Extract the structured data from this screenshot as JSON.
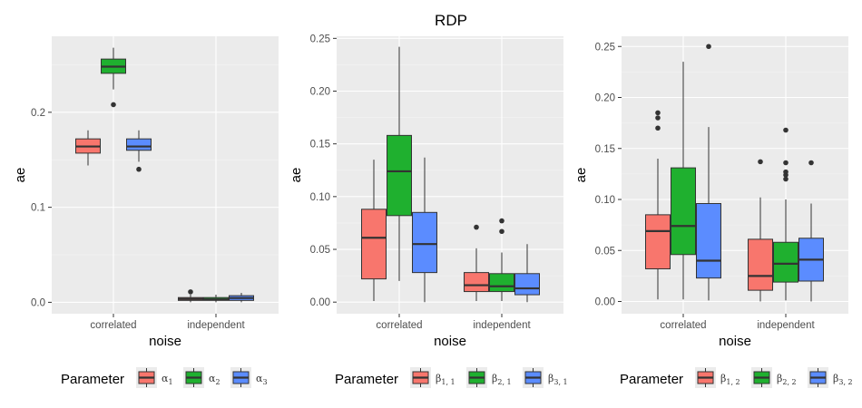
{
  "figure": {
    "title": "RDP"
  },
  "legend_title": "Parameter",
  "colors": {
    "red": "#F8766D",
    "green": "#1FB02F",
    "blue": "#5B8CFF"
  },
  "chart_data": [
    {
      "type": "boxplot",
      "xlabel": "noise",
      "ylabel": "ae",
      "categories": [
        "correlated",
        "independent"
      ],
      "ylim": [
        -0.012,
        0.28
      ],
      "yticks": [
        0.0,
        0.1,
        0.2
      ],
      "ytick_labels": [
        "0.0",
        "0.1",
        "0.2"
      ],
      "legend": [
        {
          "base": "α",
          "sub": "1",
          "color": "#F8766D"
        },
        {
          "base": "α",
          "sub": "2",
          "color": "#1FB02F"
        },
        {
          "base": "α",
          "sub": "3",
          "color": "#5B8CFF"
        }
      ],
      "boxes": [
        {
          "category": 0,
          "series": 0,
          "min": 0.144,
          "q1": 0.157,
          "median": 0.164,
          "q3": 0.172,
          "max": 0.181,
          "outliers": []
        },
        {
          "category": 0,
          "series": 1,
          "min": 0.224,
          "q1": 0.241,
          "median": 0.248,
          "q3": 0.256,
          "max": 0.268,
          "outliers": [
            0.208
          ]
        },
        {
          "category": 0,
          "series": 2,
          "min": 0.148,
          "q1": 0.16,
          "median": 0.164,
          "q3": 0.172,
          "max": 0.181,
          "outliers": [
            0.14
          ]
        },
        {
          "category": 1,
          "series": 0,
          "min": 0.0,
          "q1": 0.002,
          "median": 0.0035,
          "q3": 0.005,
          "max": 0.008,
          "outliers": [
            0.011
          ]
        },
        {
          "category": 1,
          "series": 1,
          "min": 0.0,
          "q1": 0.002,
          "median": 0.003,
          "q3": 0.005,
          "max": 0.008,
          "outliers": []
        },
        {
          "category": 1,
          "series": 2,
          "min": 0.0,
          "q1": 0.002,
          "median": 0.0045,
          "q3": 0.007,
          "max": 0.01,
          "outliers": []
        }
      ]
    },
    {
      "type": "boxplot",
      "xlabel": "noise",
      "ylabel": "ae",
      "categories": [
        "correlated",
        "independent"
      ],
      "ylim": [
        -0.011,
        0.252
      ],
      "yticks": [
        0.0,
        0.05,
        0.1,
        0.15,
        0.2,
        0.25
      ],
      "ytick_labels": [
        "0.00",
        "0.05",
        "0.10",
        "0.15",
        "0.20",
        "0.25"
      ],
      "legend": [
        {
          "base": "β",
          "sub": "1, 1",
          "color": "#F8766D"
        },
        {
          "base": "β",
          "sub": "2, 1",
          "color": "#1FB02F"
        },
        {
          "base": "β",
          "sub": "3, 1",
          "color": "#5B8CFF"
        }
      ],
      "boxes": [
        {
          "category": 0,
          "series": 0,
          "min": 0.001,
          "q1": 0.022,
          "median": 0.061,
          "q3": 0.088,
          "max": 0.135,
          "outliers": []
        },
        {
          "category": 0,
          "series": 1,
          "min": 0.02,
          "q1": 0.082,
          "median": 0.124,
          "q3": 0.158,
          "max": 0.242,
          "outliers": []
        },
        {
          "category": 0,
          "series": 2,
          "min": 0.0,
          "q1": 0.028,
          "median": 0.055,
          "q3": 0.085,
          "max": 0.137,
          "outliers": []
        },
        {
          "category": 1,
          "series": 0,
          "min": 0.001,
          "q1": 0.01,
          "median": 0.016,
          "q3": 0.028,
          "max": 0.051,
          "outliers": [
            0.071
          ]
        },
        {
          "category": 1,
          "series": 1,
          "min": 0.001,
          "q1": 0.01,
          "median": 0.015,
          "q3": 0.027,
          "max": 0.047,
          "outliers": [
            0.067,
            0.077
          ]
        },
        {
          "category": 1,
          "series": 2,
          "min": 0.0,
          "q1": 0.007,
          "median": 0.013,
          "q3": 0.027,
          "max": 0.055,
          "outliers": []
        }
      ]
    },
    {
      "type": "boxplot",
      "xlabel": "noise",
      "ylabel": "ae",
      "categories": [
        "correlated",
        "independent"
      ],
      "ylim": [
        -0.012,
        0.26
      ],
      "yticks": [
        0.0,
        0.05,
        0.1,
        0.15,
        0.2,
        0.25
      ],
      "ytick_labels": [
        "0.00",
        "0.05",
        "0.10",
        "0.15",
        "0.20",
        "0.25"
      ],
      "legend": [
        {
          "base": "β",
          "sub": "1, 2",
          "color": "#F8766D"
        },
        {
          "base": "β",
          "sub": "2, 2",
          "color": "#1FB02F"
        },
        {
          "base": "β",
          "sub": "3, 2",
          "color": "#5B8CFF"
        }
      ],
      "boxes": [
        {
          "category": 0,
          "series": 0,
          "min": 0.002,
          "q1": 0.032,
          "median": 0.069,
          "q3": 0.085,
          "max": 0.14,
          "outliers": [
            0.17,
            0.18,
            0.185
          ]
        },
        {
          "category": 0,
          "series": 1,
          "min": 0.002,
          "q1": 0.046,
          "median": 0.074,
          "q3": 0.131,
          "max": 0.235,
          "outliers": []
        },
        {
          "category": 0,
          "series": 2,
          "min": 0.001,
          "q1": 0.023,
          "median": 0.04,
          "q3": 0.096,
          "max": 0.171,
          "outliers": [
            0.25
          ]
        },
        {
          "category": 1,
          "series": 0,
          "min": 0.0,
          "q1": 0.011,
          "median": 0.025,
          "q3": 0.061,
          "max": 0.102,
          "outliers": [
            0.137
          ]
        },
        {
          "category": 1,
          "series": 1,
          "min": 0.001,
          "q1": 0.019,
          "median": 0.037,
          "q3": 0.058,
          "max": 0.1,
          "outliers": [
            0.12,
            0.124,
            0.127,
            0.136,
            0.168
          ]
        },
        {
          "category": 1,
          "series": 2,
          "min": 0.0,
          "q1": 0.02,
          "median": 0.041,
          "q3": 0.062,
          "max": 0.096,
          "outliers": [
            0.136
          ]
        }
      ]
    }
  ]
}
